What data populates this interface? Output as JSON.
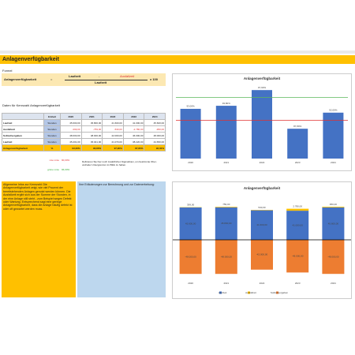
{
  "header": {
    "title": "Anlagenverfügbarkeit"
  },
  "formula": {
    "label": "Formel",
    "name": "Anlagenverfügbarkeit",
    "equals": "=",
    "numerator_left": "Laufzeit",
    "minus": "-",
    "numerator_right": "Ausfallzeit",
    "denominator": "Laufzeit",
    "factor": "x 100"
  },
  "data_table": {
    "title": "Daten für Kennzahl Anlagenverfügbarkeit",
    "columns": [
      "Einheit",
      "2020",
      "2021",
      "2022",
      "2023",
      "2024"
    ],
    "rows": [
      [
        "Laufzeit",
        "Stunden",
        "45.600,00",
        "45.800,00",
        "41.600,00",
        "41.000,00",
        "45.600,00"
      ],
      [
        "Ausfallzeit",
        "Stunden",
        "-399,00",
        "-759,00",
        "-530,00",
        "-2.780,00",
        "-950,00"
      ],
      [
        "Sollzeitvergaben",
        "Stunden",
        "48.000,00",
        "48.000,00",
        "42.000,00",
        "46.000,00",
        "48.000,00"
      ],
      [
        "Laufzeit",
        "Stunden",
        "45.201,00",
        "45.041,00",
        "41.070,00",
        "38.220,00",
        "44.650,00"
      ],
      [
        "Anlagenverfügbarkeit",
        "%",
        "93,00%",
        "93,80%",
        "97,90%",
        "87,80%",
        "92,00%"
      ]
    ]
  },
  "limits": [
    {
      "label": "rote Linie",
      "value": "90,00%"
    },
    {
      "label": "grüne Linie",
      "value": "96,00%"
    }
  ],
  "limits_note": "Definieren Sie hier noch zusätzlichen Sigmalinien, um bestimmte Ober- und/oder Untergrenzen im Blick zu haben.",
  "info_box": "Allgemeine Infos zur Kennzahl: Die Anlagenverfügbarkeit zeigt, wie viel Prozent der bereitstehenden Anlagen genutzt werden können. Die Ausfallzeit ergibt sich aus der Summe der Stunden, in der eine Anlage still steht - zum Beispiel wegen Defekt oder Wartung. Entsprechend sagt eine geringe Anlagenverfügbarkeit, dass die Anlage häufig defekt ist oder oft gewartet werden muss.",
  "notes_box": "Ihre Erläuterungen zur Berechnung und zur Datenerhebung:",
  "charts": [
    {
      "type": "bar",
      "title": "Anlagenverfügbarkeit",
      "categories": [
        "2020",
        "2021",
        "2022",
        "2023",
        "2024"
      ],
      "values": [
        93,
        93.8,
        97.9,
        87.8,
        92
      ],
      "value_labels": [
        "93,00%",
        "93,80%",
        "97,90%",
        "87,80%",
        "92,00%"
      ],
      "color": "#4472c4",
      "ylim": [
        80,
        100
      ],
      "reference_lines": [
        {
          "value": 90,
          "color": "#e03030"
        },
        {
          "value": 96,
          "color": "#5cb85c"
        }
      ]
    },
    {
      "type": "stacked_bar",
      "title": "Anlagenverfügbarkeit",
      "categories": [
        "2020",
        "2021",
        "2022",
        "2023",
        "2024"
      ],
      "ylim": [
        -50000,
        50000
      ],
      "series": [
        {
          "name": "Laufzeit",
          "color": "#4472c4",
          "values": [
            45600,
            45800,
            41600,
            41000,
            45600
          ],
          "value_labels": [
            "45.600,00",
            "45.800,00",
            "41.600,00",
            "41.000,00",
            "45.600,00"
          ]
        },
        {
          "name": "Ausfallzeit",
          "color": "#ffc000",
          "values": [
            399,
            759,
            530,
            2780,
            950
          ],
          "value_labels": [
            "399,00",
            "759,00",
            "530,00",
            "2.780,00",
            "950,00"
          ]
        },
        {
          "name": "Sollzeitvergaben",
          "color": "#ed7d31",
          "values": [
            -48000,
            -48000,
            -42000,
            -46000,
            -48000
          ],
          "value_labels": [
            "-48.000,00",
            "-48.000,00",
            "-42.000,00",
            "-46.000,00",
            "-48.000,00"
          ]
        }
      ]
    }
  ]
}
